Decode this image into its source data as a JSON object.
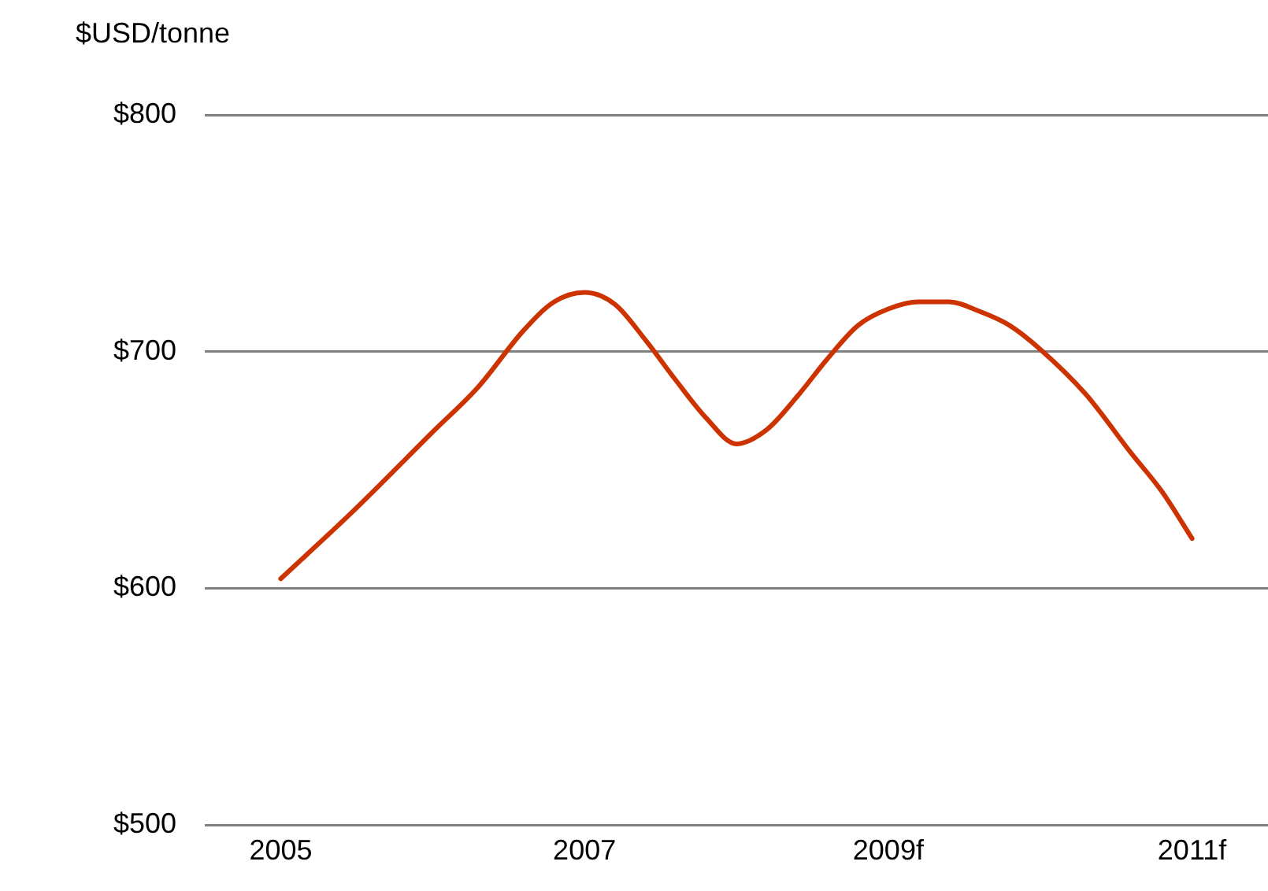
{
  "chart_data": {
    "type": "line",
    "ylabel": "$USD/tonne",
    "x": [
      2005,
      2005.5,
      2006,
      2006.3,
      2006.6,
      2006.8,
      2007,
      2007.2,
      2007.4,
      2007.6,
      2007.8,
      2008,
      2008.2,
      2008.4,
      2008.6,
      2008.8,
      2009,
      2009.2,
      2009.4,
      2009.6,
      2009.8,
      2010,
      2010.3,
      2010.6,
      2010.8,
      2011
    ],
    "series": [
      {
        "color": "#cc3300",
        "values": [
          604,
          634,
          666,
          685,
          709,
          721,
          725,
          720,
          705,
          688,
          672,
          661,
          667,
          681,
          697,
          711,
          718,
          721,
          721,
          717,
          711,
          701,
          682,
          657,
          641,
          621
        ]
      }
    ],
    "xlim": [
      2004.5,
      2011.5
    ],
    "xticks": [
      {
        "value": 2005,
        "label": "2005"
      },
      {
        "value": 2007,
        "label": "2007"
      },
      {
        "value": 2009,
        "label": "2009f"
      },
      {
        "value": 2011,
        "label": "2011f"
      }
    ],
    "ylim": [
      500,
      800
    ],
    "yticks": [
      {
        "value": 500,
        "label": "$500"
      },
      {
        "value": 600,
        "label": "$600"
      },
      {
        "value": 700,
        "label": "$700"
      },
      {
        "value": 800,
        "label": "$800"
      }
    ],
    "grid": "y",
    "legend": false,
    "marker": "none",
    "line_style": "solid"
  }
}
